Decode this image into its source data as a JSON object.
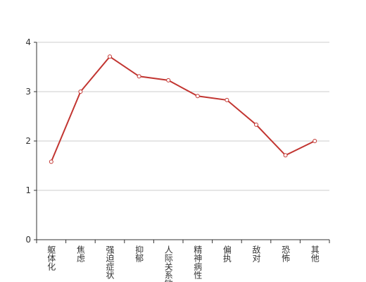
{
  "chart_data": {
    "type": "line",
    "categories": [
      "躯体化",
      "焦虑",
      "强迫症状",
      "抑郁",
      "人际关系敏感",
      "精神病性",
      "偏执",
      "敌对",
      "恐怖",
      "其他"
    ],
    "series": [
      {
        "color": "#c23531",
        "values": [
          1.58,
          3.0,
          3.71,
          3.31,
          3.23,
          2.91,
          2.83,
          2.33,
          1.71,
          2.0
        ]
      }
    ],
    "ylim": [
      0,
      4
    ],
    "yticks": [
      0,
      1,
      2,
      3,
      4
    ],
    "grid": true
  }
}
